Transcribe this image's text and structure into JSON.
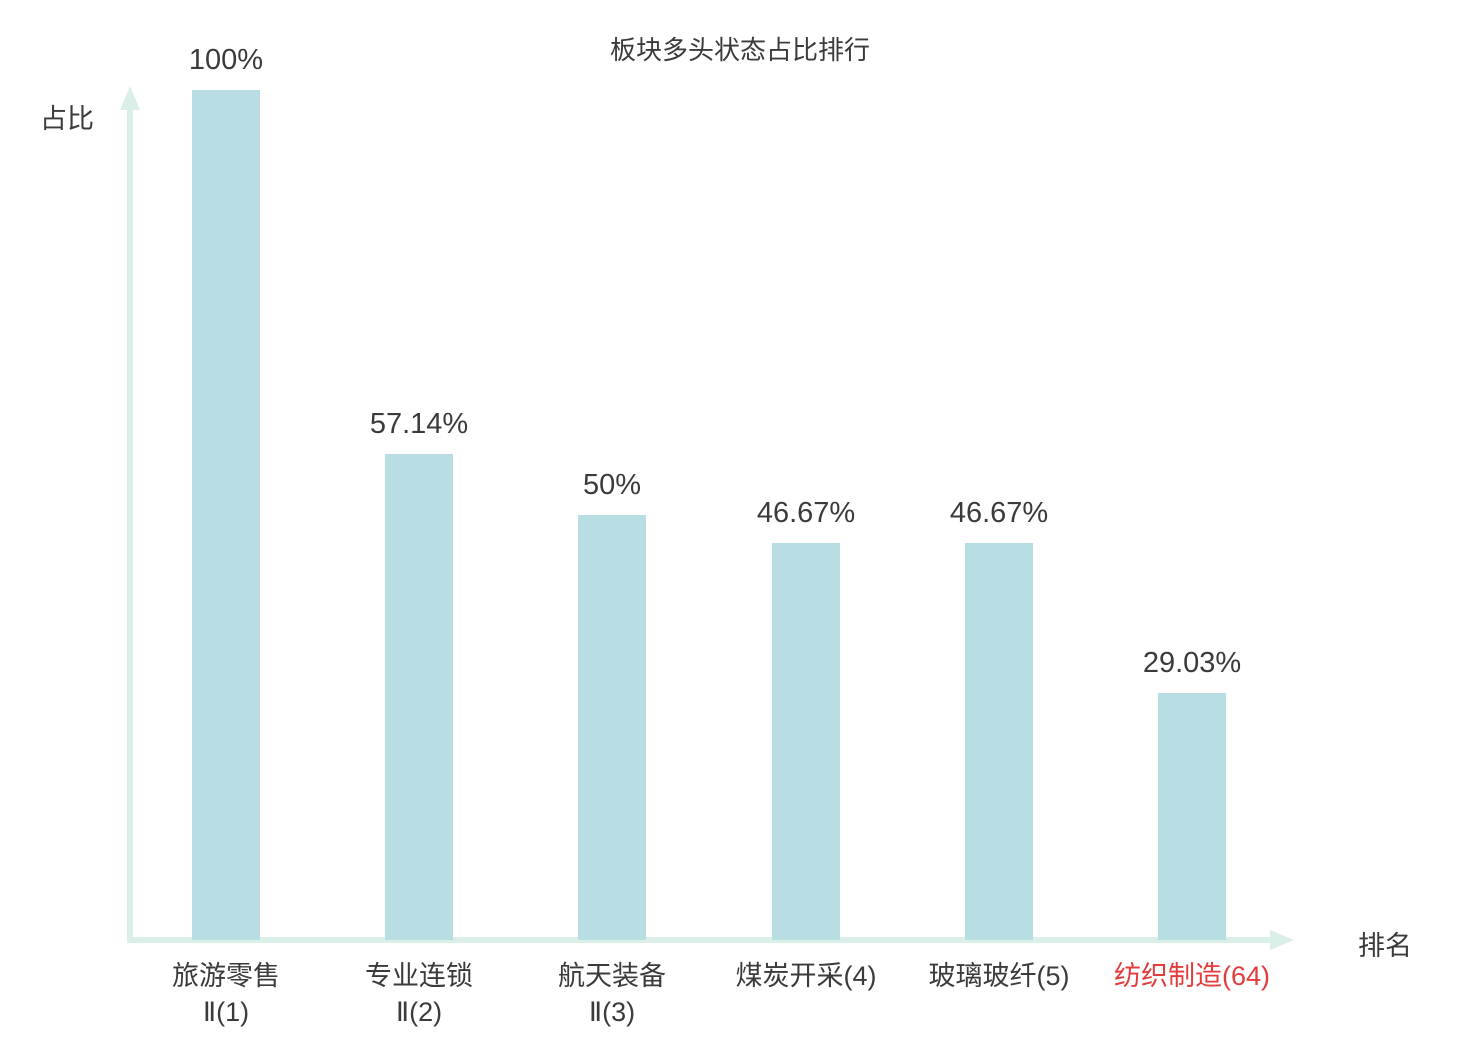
{
  "colors": {
    "bar_fill": "#b8dde2",
    "axis": "#d9efe8",
    "text": "#3b3b3b",
    "highlight": "#e23c3c",
    "background": "#ffffff"
  },
  "chart_data": {
    "type": "bar",
    "title": "板块多头状态占比排行",
    "xlabel": "排名",
    "ylabel": "占比",
    "ylim": [
      0,
      100
    ],
    "grid": false,
    "legend": false,
    "categories": [
      "旅游零售Ⅱ(1)",
      "专业连锁Ⅱ(2)",
      "航天装备Ⅱ(3)",
      "煤炭开采(4)",
      "玻璃玻纤(5)",
      "纺织制造(64)"
    ],
    "values": [
      100,
      57.14,
      50,
      46.67,
      46.67,
      29.03
    ],
    "bars": [
      {
        "label_lines": [
          "旅游零售",
          "Ⅱ(1)"
        ],
        "value": 100,
        "value_label": "100%",
        "highlighted": false
      },
      {
        "label_lines": [
          "专业连锁",
          "Ⅱ(2)"
        ],
        "value": 57.14,
        "value_label": "57.14%",
        "highlighted": false
      },
      {
        "label_lines": [
          "航天装备",
          "Ⅱ(3)"
        ],
        "value": 50,
        "value_label": "50%",
        "highlighted": false
      },
      {
        "label_lines": [
          "煤炭开采(4)"
        ],
        "value": 46.67,
        "value_label": "46.67%",
        "highlighted": false
      },
      {
        "label_lines": [
          "玻璃玻纤(5)"
        ],
        "value": 46.67,
        "value_label": "46.67%",
        "highlighted": false
      },
      {
        "label_lines": [
          "纺织制造(64)"
        ],
        "value": 29.03,
        "value_label": "29.03%",
        "highlighted": true
      }
    ]
  }
}
